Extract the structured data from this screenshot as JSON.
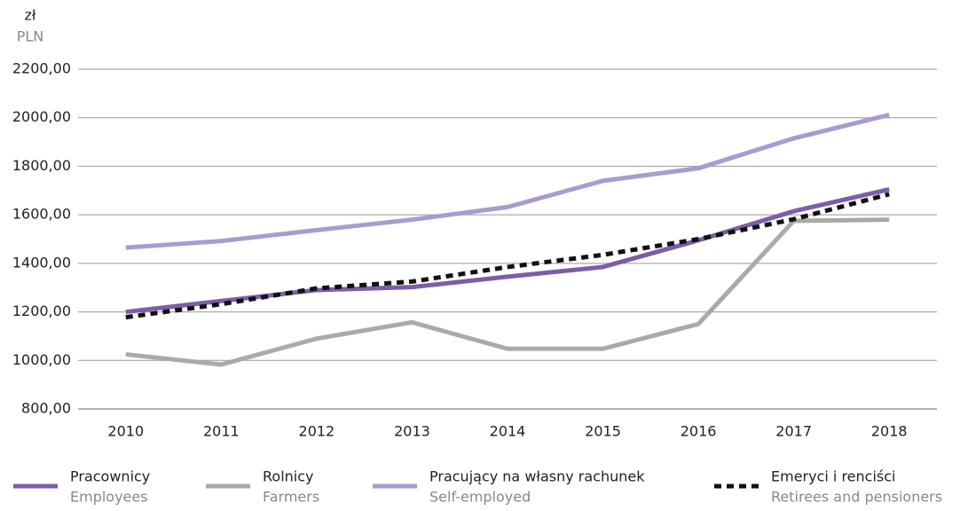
{
  "chart_data": {
    "type": "line",
    "unit_label": "zł",
    "unit_label_en": "PLN",
    "categories": [
      "2010",
      "2011",
      "2012",
      "2013",
      "2014",
      "2015",
      "2016",
      "2017",
      "2018"
    ],
    "series": [
      {
        "name": "Pracownicy",
        "name_en": "Employees",
        "color": "#7b5ea7",
        "style": "solid",
        "values": [
          1200,
          1245,
          1290,
          1302,
          1345,
          1385,
          1495,
          1615,
          1705
        ]
      },
      {
        "name": "Rolnicy",
        "name_en": "Farmers",
        "color": "#aaaaaa",
        "style": "solid",
        "values": [
          1025,
          983,
          1090,
          1157,
          1048,
          1048,
          1150,
          1575,
          1580
        ]
      },
      {
        "name": "Pracujący na własny rachunek",
        "name_en": "Self-employed",
        "color": "#a99bd0",
        "style": "solid",
        "values": [
          1465,
          1492,
          1537,
          1580,
          1632,
          1740,
          1792,
          1915,
          2012
        ]
      },
      {
        "name": "Emeryci i renciści",
        "name_en": "Retirees and pensioners",
        "color": "#111111",
        "style": "dashed",
        "values": [
          1178,
          1232,
          1297,
          1325,
          1385,
          1435,
          1500,
          1582,
          1685
        ]
      }
    ],
    "ylim": [
      800,
      2200
    ],
    "yticks": [
      {
        "value": 800,
        "label": "800,00"
      },
      {
        "value": 1000,
        "label": "1000,00"
      },
      {
        "value": 1200,
        "label": "1200,00"
      },
      {
        "value": 1400,
        "label": "1400,00"
      },
      {
        "value": 1600,
        "label": "1600,00"
      },
      {
        "value": 1800,
        "label": "1800,00"
      },
      {
        "value": 2000,
        "label": "2000,00"
      },
      {
        "value": 2200,
        "label": "2200,00"
      }
    ],
    "grid": true,
    "legend": "bottom"
  }
}
